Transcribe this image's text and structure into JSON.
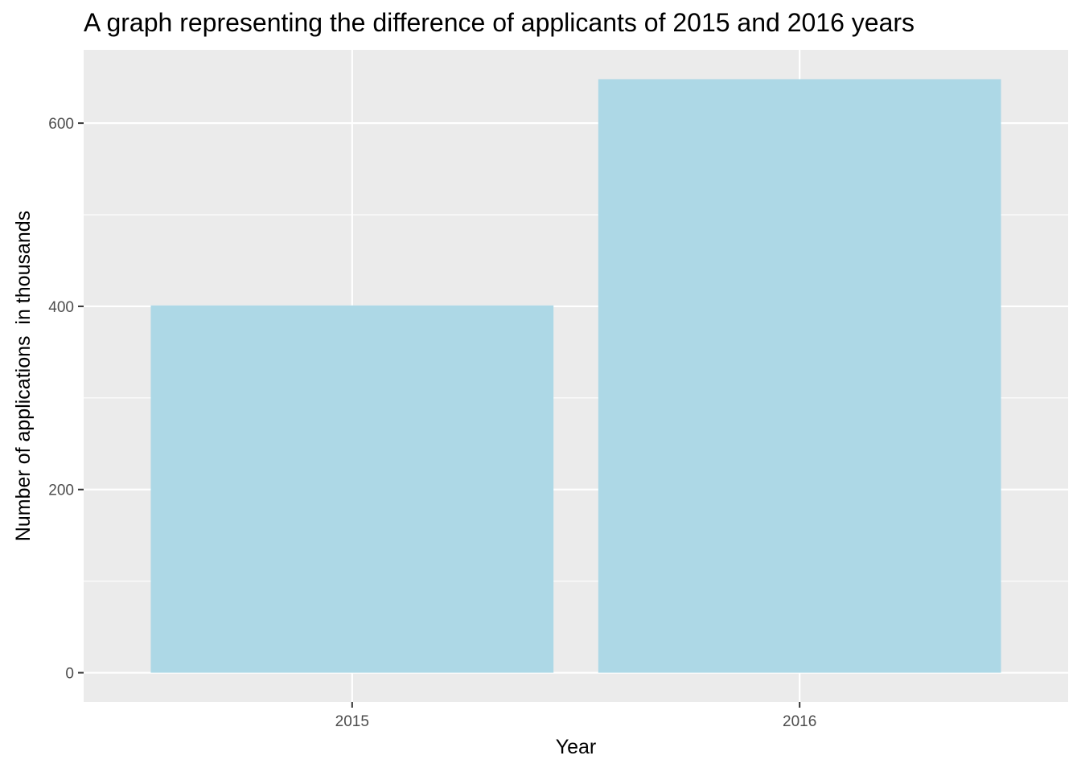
{
  "chart_data": {
    "type": "bar",
    "title": "A graph representing the difference of applicants of 2015 and 2016 years",
    "xlabel": "Year",
    "ylabel": "Number of applications  in thousands",
    "categories": [
      "2015",
      "2016"
    ],
    "values": [
      401,
      648
    ],
    "ylim": [
      -32,
      680
    ],
    "yticks": [
      0,
      200,
      400,
      600
    ],
    "grid": true,
    "legend": "none",
    "colors": {
      "bar": "#add8e6",
      "panel_background": "#ebebeb",
      "grid": "#ffffff",
      "tick_text": "#4d4d4d",
      "tick_mark": "#333333"
    }
  }
}
